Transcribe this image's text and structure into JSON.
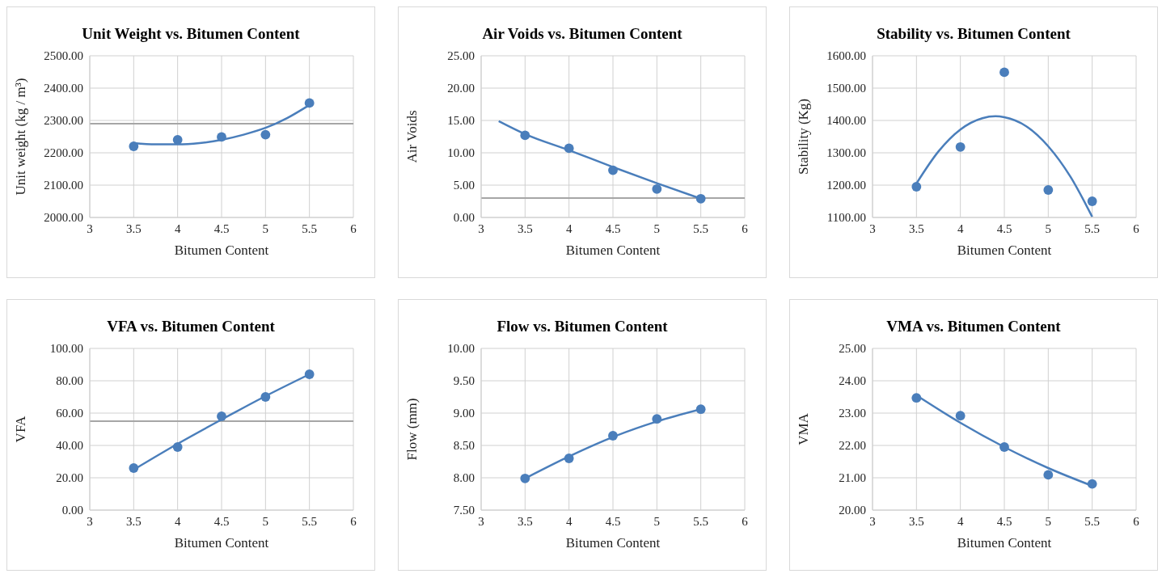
{
  "chart_data": [
    {
      "type": "scatter",
      "title": "Unit Weight  vs. Bitumen Content",
      "xlabel": "Bitumen Content",
      "ylabel": "Unit weight (kg / m³)",
      "xlim": [
        3,
        6
      ],
      "xticks": [
        3,
        3.5,
        4,
        4.5,
        5,
        5.5,
        6
      ],
      "ylim": [
        2000,
        2500
      ],
      "yticks": [
        {
          "value": 2000,
          "label": "2000.00"
        },
        {
          "value": 2100,
          "label": "2100.00"
        },
        {
          "value": 2200,
          "label": "2200.00"
        },
        {
          "value": 2300,
          "label": "2300.00"
        },
        {
          "value": 2400,
          "label": "2400.00"
        },
        {
          "value": 2500,
          "label": "2500.00"
        }
      ],
      "grid": true,
      "marker": "circle",
      "line_style": "solid",
      "ref_lines": [
        {
          "axis": "y",
          "value": 2290,
          "color": "#a6a6a6"
        }
      ],
      "series": [
        {
          "color": "#4a7ebb",
          "x": [
            3.5,
            4,
            4.5,
            5,
            5.5
          ],
          "values": [
            2220,
            2240,
            2249,
            2256,
            2354
          ]
        },
        {
          "type": "line",
          "color": "#4a7ebb",
          "marker": "none",
          "x": [
            3.5,
            3.75,
            4,
            4.25,
            4.5,
            4.75,
            5,
            5.25,
            5.5
          ],
          "values": [
            2230,
            2226,
            2226,
            2230,
            2240,
            2256,
            2277,
            2308,
            2348
          ]
        }
      ]
    },
    {
      "type": "scatter",
      "title": "Air Voids vs. Bitumen Content",
      "xlabel": "Bitumen Content",
      "ylabel": "Air Voids",
      "xlim": [
        3,
        6
      ],
      "xticks": [
        3,
        3.5,
        4,
        4.5,
        5,
        5.5,
        6
      ],
      "ylim": [
        0,
        25
      ],
      "yticks": [
        {
          "value": 0,
          "label": "0.00"
        },
        {
          "value": 5,
          "label": "5.00"
        },
        {
          "value": 10,
          "label": "10.00"
        },
        {
          "value": 15,
          "label": "15.00"
        },
        {
          "value": 20,
          "label": "20.00"
        },
        {
          "value": 25,
          "label": "25.00"
        }
      ],
      "grid": true,
      "marker": "circle",
      "line_style": "solid",
      "ref_lines": [
        {
          "axis": "y",
          "value": 3,
          "color": "#a6a6a6"
        }
      ],
      "series": [
        {
          "color": "#4a7ebb",
          "x": [
            3.5,
            4,
            4.5,
            5,
            5.5
          ],
          "values": [
            12.7,
            10.7,
            7.3,
            4.4,
            2.9
          ]
        },
        {
          "type": "line",
          "color": "#4a7ebb",
          "marker": "none",
          "x": [
            3.2,
            3.5,
            4,
            4.5,
            5,
            5.5
          ],
          "values": [
            14.9,
            12.9,
            10.4,
            7.8,
            5.3,
            2.9
          ]
        }
      ]
    },
    {
      "type": "scatter",
      "title": "Stability vs. Bitumen Content",
      "xlabel": "Bitumen Content",
      "ylabel": "Stability (Kg)",
      "xlim": [
        3,
        6
      ],
      "xticks": [
        3,
        3.5,
        4,
        4.5,
        5,
        5.5,
        6
      ],
      "ylim": [
        1100,
        1600
      ],
      "yticks": [
        {
          "value": 1100,
          "label": "1100.00"
        },
        {
          "value": 1200,
          "label": "1200.00"
        },
        {
          "value": 1300,
          "label": "1300.00"
        },
        {
          "value": 1400,
          "label": "1400.00"
        },
        {
          "value": 1500,
          "label": "1500.00"
        },
        {
          "value": 1600,
          "label": "1600.00"
        }
      ],
      "grid": true,
      "marker": "circle",
      "line_style": "solid",
      "series": [
        {
          "color": "#4a7ebb",
          "x": [
            3.5,
            4,
            4.5,
            5,
            5.5
          ],
          "values": [
            1195,
            1318,
            1549,
            1185,
            1150
          ]
        },
        {
          "type": "line",
          "color": "#4a7ebb",
          "marker": "none",
          "x": [
            3.5,
            3.75,
            4,
            4.25,
            4.4,
            4.5,
            4.75,
            5,
            5.25,
            5.5
          ],
          "values": [
            1205,
            1304,
            1372,
            1407,
            1413,
            1410,
            1382,
            1320,
            1227,
            1102
          ]
        }
      ]
    },
    {
      "type": "scatter",
      "title": "VFA vs. Bitumen Content",
      "xlabel": "Bitumen Content",
      "ylabel": "VFA",
      "xlim": [
        3,
        6
      ],
      "xticks": [
        3,
        3.5,
        4,
        4.5,
        5,
        5.5,
        6
      ],
      "ylim": [
        0,
        100
      ],
      "yticks": [
        {
          "value": 0,
          "label": "0.00"
        },
        {
          "value": 20,
          "label": "20.00"
        },
        {
          "value": 40,
          "label": "40.00"
        },
        {
          "value": 60,
          "label": "60.00"
        },
        {
          "value": 80,
          "label": "80.00"
        },
        {
          "value": 100,
          "label": "100.00"
        }
      ],
      "grid": true,
      "marker": "circle",
      "line_style": "solid",
      "ref_lines": [
        {
          "axis": "y",
          "value": 55,
          "color": "#a6a6a6"
        }
      ],
      "series": [
        {
          "color": "#4a7ebb",
          "x": [
            3.5,
            4,
            4.5,
            5,
            5.5
          ],
          "values": [
            26,
            39,
            58,
            70,
            84
          ]
        },
        {
          "type": "line",
          "color": "#4a7ebb",
          "marker": "none",
          "x": [
            3.5,
            4,
            4.5,
            5,
            5.5
          ],
          "values": [
            25,
            41,
            56,
            70.5,
            84
          ]
        }
      ]
    },
    {
      "type": "scatter",
      "title": "Flow vs. Bitumen Content",
      "xlabel": "Bitumen Content",
      "ylabel": "Flow (mm)",
      "xlim": [
        3,
        6
      ],
      "xticks": [
        3,
        3.5,
        4,
        4.5,
        5,
        5.5,
        6
      ],
      "ylim": [
        7.5,
        10
      ],
      "yticks": [
        {
          "value": 7.5,
          "label": "7.50"
        },
        {
          "value": 8,
          "label": "8.00"
        },
        {
          "value": 8.5,
          "label": "8.50"
        },
        {
          "value": 9,
          "label": "9.00"
        },
        {
          "value": 9.5,
          "label": "9.50"
        },
        {
          "value": 10,
          "label": "10.00"
        }
      ],
      "grid": true,
      "marker": "circle",
      "line_style": "solid",
      "series": [
        {
          "color": "#4a7ebb",
          "x": [
            3.5,
            4,
            4.5,
            5,
            5.5
          ],
          "values": [
            7.99,
            8.3,
            8.65,
            8.91,
            9.06
          ]
        },
        {
          "type": "line",
          "color": "#4a7ebb",
          "marker": "none",
          "x": [
            3.5,
            4,
            4.5,
            5,
            5.5
          ],
          "values": [
            7.99,
            8.33,
            8.63,
            8.87,
            9.06
          ]
        }
      ]
    },
    {
      "type": "scatter",
      "title": "VMA vs. Bitumen Content",
      "xlabel": "Bitumen Content",
      "ylabel": "VMA",
      "xlim": [
        3,
        6
      ],
      "xticks": [
        3,
        3.5,
        4,
        4.5,
        5,
        5.5,
        6
      ],
      "ylim": [
        20,
        25
      ],
      "yticks": [
        {
          "value": 20,
          "label": "20.00"
        },
        {
          "value": 21,
          "label": "21.00"
        },
        {
          "value": 22,
          "label": "22.00"
        },
        {
          "value": 23,
          "label": "23.00"
        },
        {
          "value": 24,
          "label": "24.00"
        },
        {
          "value": 25,
          "label": "25.00"
        }
      ],
      "grid": true,
      "marker": "circle",
      "line_style": "solid",
      "series": [
        {
          "color": "#4a7ebb",
          "x": [
            3.5,
            4,
            4.5,
            5,
            5.5
          ],
          "values": [
            23.47,
            22.92,
            21.95,
            21.09,
            20.81
          ]
        },
        {
          "type": "line",
          "color": "#4a7ebb",
          "marker": "none",
          "x": [
            3.5,
            4,
            4.5,
            5,
            5.5
          ],
          "values": [
            23.55,
            22.7,
            21.95,
            21.3,
            20.75
          ]
        }
      ]
    }
  ]
}
